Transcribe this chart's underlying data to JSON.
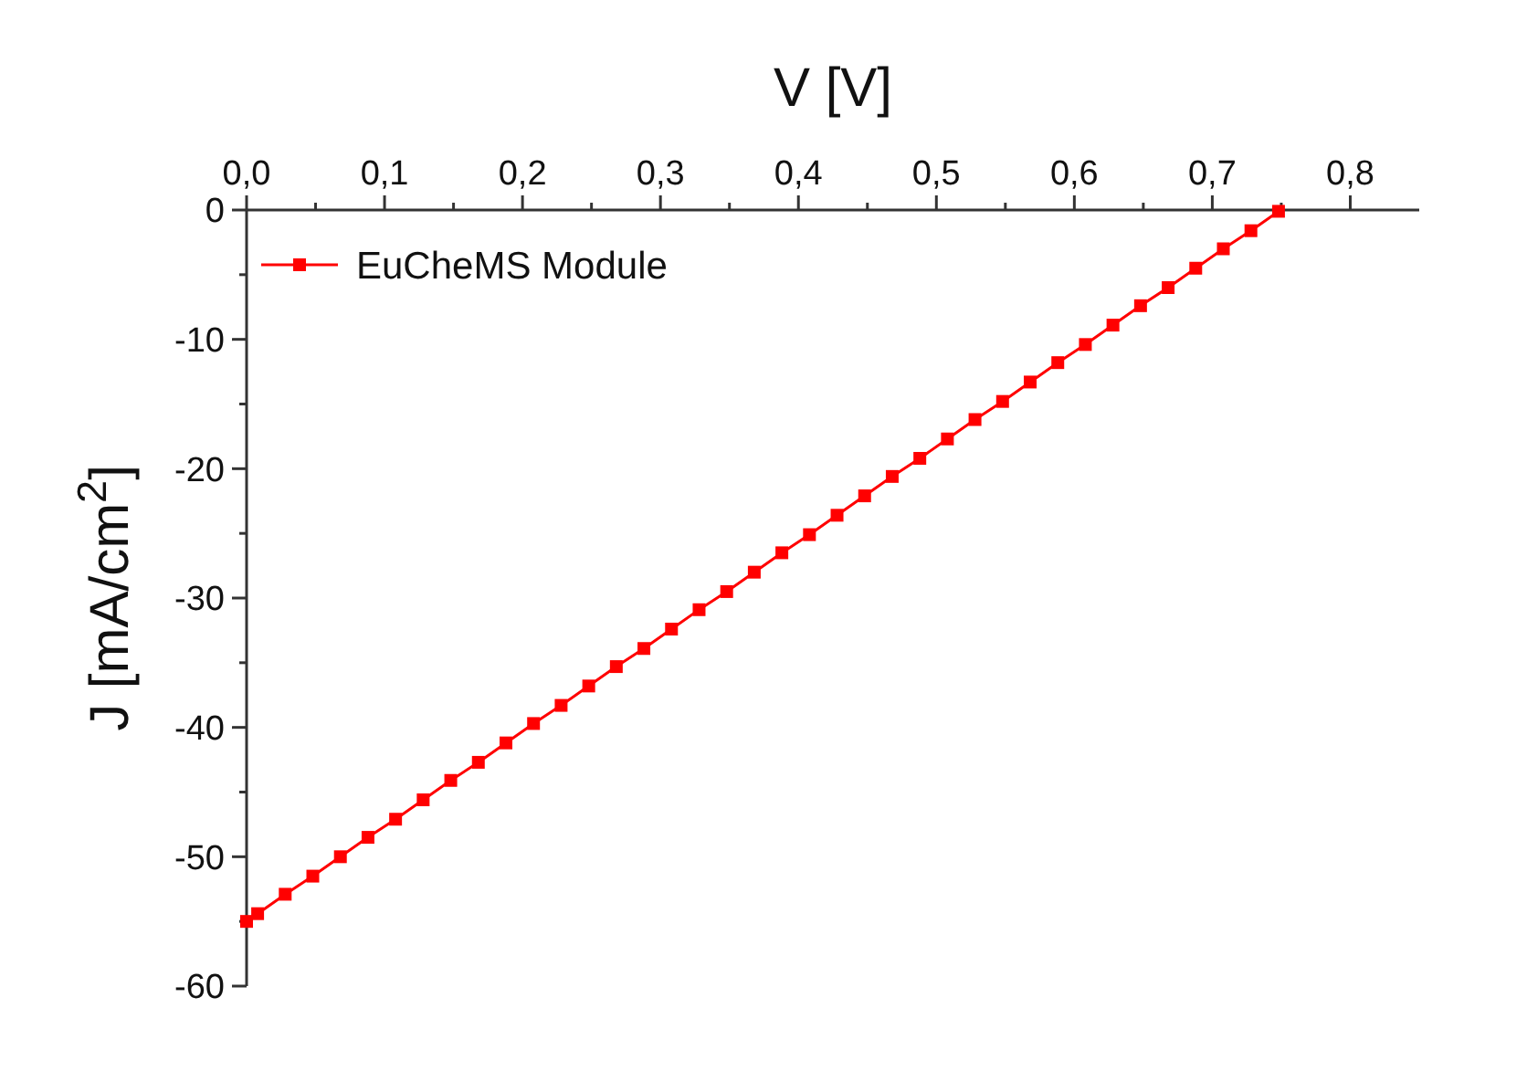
{
  "chart_data": {
    "type": "line",
    "xlabel": "V [V]",
    "ylabel": "J [mA/cm$^{2}$]",
    "xlim": [
      0,
      0.85
    ],
    "xticks": [
      {
        "value": 0,
        "label": "0,0"
      },
      {
        "value": 0.05,
        "label": null
      },
      {
        "value": 0.1,
        "label": "0,1"
      },
      {
        "value": 0.15,
        "label": null
      },
      {
        "value": 0.2,
        "label": "0,2"
      },
      {
        "value": 0.25,
        "label": null
      },
      {
        "value": 0.3,
        "label": "0,3"
      },
      {
        "value": 0.35,
        "label": null
      },
      {
        "value": 0.4,
        "label": "0,4"
      },
      {
        "value": 0.45,
        "label": null
      },
      {
        "value": 0.5,
        "label": "0,5"
      },
      {
        "value": 0.55,
        "label": null
      },
      {
        "value": 0.6,
        "label": "0,6"
      },
      {
        "value": 0.65,
        "label": null
      },
      {
        "value": 0.7,
        "label": "0,7"
      },
      {
        "value": 0.75,
        "label": null
      },
      {
        "value": 0.8,
        "label": "0,8"
      }
    ],
    "ylim": [
      -60,
      0
    ],
    "yticks": [
      -60,
      {
        "value": -55,
        "label": null
      },
      -50,
      {
        "value": -45,
        "label": null
      },
      -40,
      {
        "value": -35,
        "label": null
      },
      -30,
      {
        "value": -25,
        "label": null
      },
      -20,
      {
        "value": -15,
        "label": null
      },
      -10,
      {
        "value": -5,
        "label": null
      },
      0
    ],
    "x": [
      0,
      0.008,
      0.028,
      0.048,
      0.068,
      0.088,
      0.108,
      0.128,
      0.148,
      0.168,
      0.188,
      0.208,
      0.228,
      0.248,
      0.268,
      0.288,
      0.308,
      0.328,
      0.348,
      0.368,
      0.388,
      0.408,
      0.428,
      0.448,
      0.468,
      0.488,
      0.508,
      0.528,
      0.548,
      0.568,
      0.588,
      0.608,
      0.628,
      0.648,
      0.668,
      0.688,
      0.708,
      0.728,
      0.748
    ],
    "series": [
      {
        "name": "EuCheMS Module",
        "color": "#ff0000",
        "values": [
          -55.0,
          -54.4,
          -52.9,
          -51.5,
          -50.0,
          -48.5,
          -47.1,
          -45.6,
          -44.1,
          -42.7,
          -41.2,
          -39.7,
          -38.3,
          -36.8,
          -35.3,
          -33.9,
          -32.4,
          -30.9,
          -29.5,
          -28.0,
          -26.5,
          -25.1,
          -23.6,
          -22.1,
          -20.6,
          -19.2,
          -17.7,
          -16.2,
          -14.8,
          -13.3,
          -11.8,
          -10.4,
          -8.9,
          -7.4,
          -6.0,
          -4.5,
          -3.0,
          -1.6,
          -0.1
        ]
      }
    ],
    "marker": "square",
    "line_style": "solid",
    "legend": "top left",
    "grid": false
  }
}
